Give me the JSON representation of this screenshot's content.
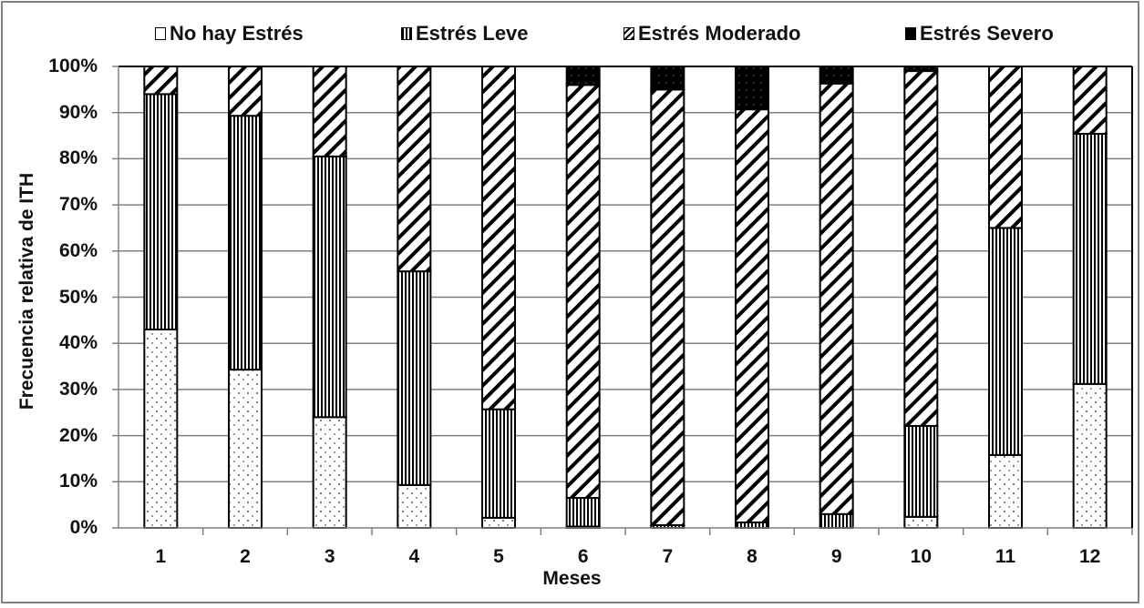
{
  "chart_data": {
    "type": "bar",
    "stacked": true,
    "normalized": true,
    "title": "",
    "xlabel": "Meses",
    "ylabel": "Frecuencia relativa de ITH",
    "ylim": [
      0,
      100
    ],
    "yticks": [
      "0%",
      "10%",
      "20%",
      "30%",
      "40%",
      "50%",
      "60%",
      "70%",
      "80%",
      "90%",
      "100%"
    ],
    "categories": [
      "1",
      "2",
      "3",
      "4",
      "5",
      "6",
      "7",
      "8",
      "9",
      "10",
      "11",
      "12"
    ],
    "series": [
      {
        "name": "No hay Estrés",
        "pattern": "dots",
        "values": [
          43.0,
          34.3,
          24.0,
          9.3,
          2.2,
          0.3,
          0.0,
          0.0,
          0.0,
          2.4,
          15.8,
          31.2
        ]
      },
      {
        "name": "Estrés Leve",
        "pattern": "vertical-lines",
        "values": [
          51.0,
          55.0,
          56.5,
          46.3,
          23.5,
          6.2,
          0.6,
          1.2,
          3.0,
          19.7,
          49.2,
          54.2
        ]
      },
      {
        "name": "Estrés Moderado",
        "pattern": "diagonal-lines",
        "values": [
          6.0,
          10.7,
          19.5,
          44.4,
          74.3,
          89.5,
          94.4,
          89.5,
          93.3,
          76.9,
          35.0,
          14.6
        ]
      },
      {
        "name": "Estrés Severo",
        "pattern": "solid-black",
        "values": [
          0.0,
          0.0,
          0.0,
          0.0,
          0.0,
          4.0,
          5.0,
          9.3,
          3.7,
          1.0,
          0.0,
          0.0
        ]
      }
    ],
    "grid": true,
    "legend_position": "top"
  },
  "legend": [
    {
      "label": "No hay Estrés"
    },
    {
      "label": "Estrés Leve"
    },
    {
      "label": "Estrés Moderado"
    },
    {
      "label": "Estrés Severo"
    }
  ],
  "colors": {
    "bar_outline": "#000000",
    "grid": "#808080",
    "frame": "#808080"
  }
}
